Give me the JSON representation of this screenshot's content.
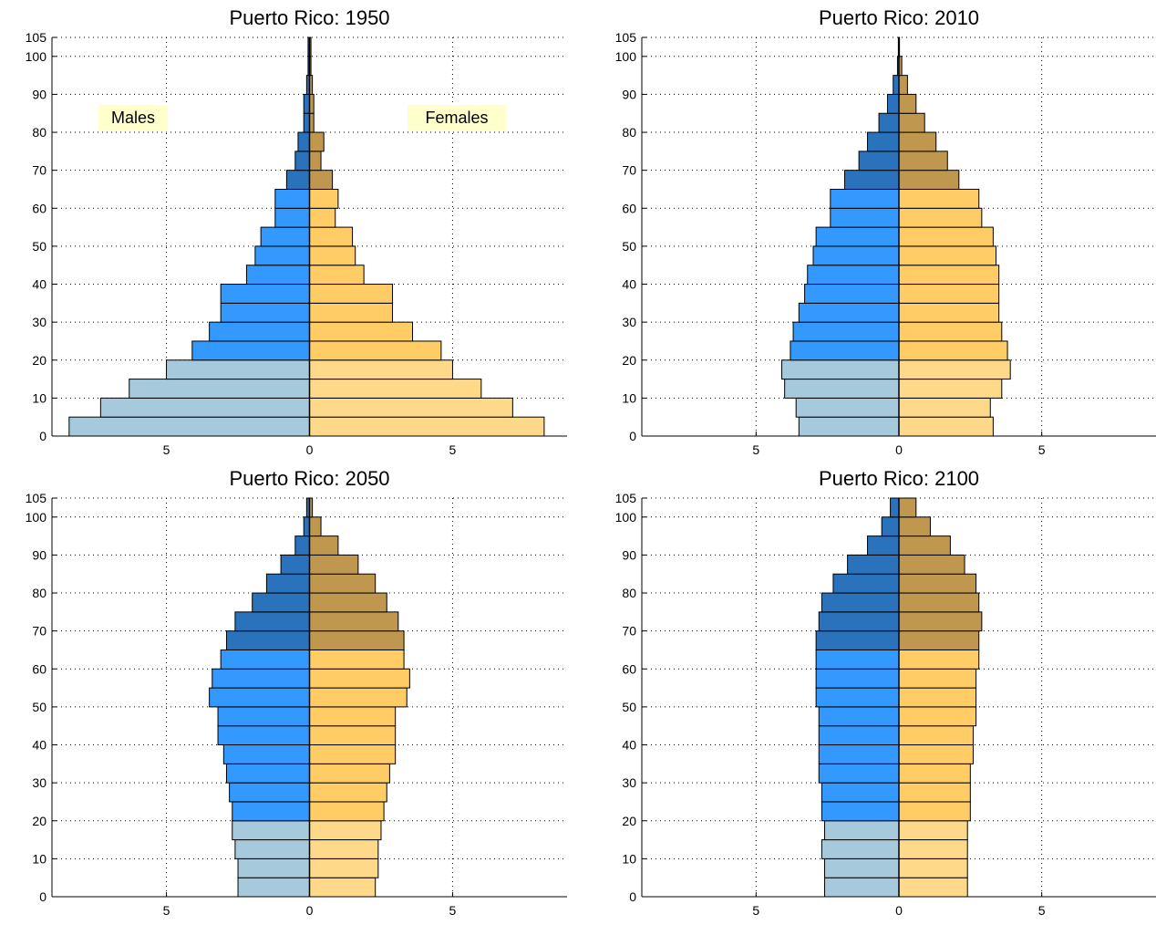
{
  "figure": {
    "panels": [
      {
        "title": "Puerto Rico: 1950"
      },
      {
        "title": "Puerto Rico: 2010"
      },
      {
        "title": "Puerto Rico: 2050"
      },
      {
        "title": "Puerto Rico: 2100"
      }
    ],
    "legend": {
      "males_label": "Males",
      "females_label": "Females",
      "label_background": "#ffffcc"
    }
  },
  "colors": {
    "male_young": "#a6c9dc",
    "male_working": "#3399ff",
    "male_old": "#2a72bb",
    "female_young": "#ffd98a",
    "female_working": "#ffcc66",
    "female_old": "#c0974e",
    "edge": "#000000",
    "grid": "#000000"
  },
  "chart_data": [
    {
      "type": "bar",
      "orientation": "horizontal-butterfly",
      "title": "Puerto Rico: 1950",
      "age_groups": [
        0,
        5,
        10,
        15,
        20,
        25,
        30,
        35,
        40,
        45,
        50,
        55,
        60,
        65,
        70,
        75,
        80,
        85,
        90,
        95,
        100
      ],
      "y_ticks": [
        0,
        10,
        20,
        30,
        40,
        50,
        60,
        70,
        80,
        90,
        100,
        105
      ],
      "x_ticks": [
        5,
        0,
        5
      ],
      "xlim": [
        -9,
        9
      ],
      "ylim": [
        0,
        105
      ],
      "grid": true,
      "series": [
        {
          "name": "Males",
          "values": [
            8.4,
            7.3,
            6.3,
            5.0,
            4.1,
            3.5,
            3.1,
            3.1,
            2.2,
            1.9,
            1.7,
            1.2,
            1.2,
            0.8,
            0.5,
            0.4,
            0.2,
            0.2,
            0.1,
            0.05,
            0.05
          ]
        },
        {
          "name": "Females",
          "values": [
            8.2,
            7.1,
            6.0,
            5.0,
            4.6,
            3.6,
            2.9,
            2.9,
            1.9,
            1.6,
            1.5,
            0.9,
            1.0,
            0.8,
            0.4,
            0.5,
            0.15,
            0.15,
            0.1,
            0.05,
            0.05
          ]
        }
      ]
    },
    {
      "type": "bar",
      "orientation": "horizontal-butterfly",
      "title": "Puerto Rico: 2010",
      "age_groups": [
        0,
        5,
        10,
        15,
        20,
        25,
        30,
        35,
        40,
        45,
        50,
        55,
        60,
        65,
        70,
        75,
        80,
        85,
        90,
        95,
        100
      ],
      "y_ticks": [
        0,
        10,
        20,
        30,
        40,
        50,
        60,
        70,
        80,
        90,
        100,
        105
      ],
      "x_ticks": [
        5,
        0,
        5
      ],
      "xlim": [
        -9,
        9
      ],
      "ylim": [
        0,
        105
      ],
      "grid": true,
      "series": [
        {
          "name": "Males",
          "values": [
            3.5,
            3.6,
            4.0,
            4.1,
            3.8,
            3.7,
            3.5,
            3.3,
            3.2,
            3.0,
            2.9,
            2.4,
            2.4,
            1.9,
            1.4,
            1.1,
            0.7,
            0.4,
            0.2,
            0.05,
            0.02
          ]
        },
        {
          "name": "Females",
          "values": [
            3.3,
            3.2,
            3.6,
            3.9,
            3.8,
            3.6,
            3.5,
            3.5,
            3.5,
            3.4,
            3.3,
            2.9,
            2.8,
            2.1,
            1.7,
            1.3,
            0.9,
            0.6,
            0.3,
            0.1,
            0.02
          ]
        }
      ]
    },
    {
      "type": "bar",
      "orientation": "horizontal-butterfly",
      "title": "Puerto Rico: 2050",
      "age_groups": [
        0,
        5,
        10,
        15,
        20,
        25,
        30,
        35,
        40,
        45,
        50,
        55,
        60,
        65,
        70,
        75,
        80,
        85,
        90,
        95,
        100
      ],
      "y_ticks": [
        0,
        10,
        20,
        30,
        40,
        50,
        60,
        70,
        80,
        90,
        100,
        105
      ],
      "x_ticks": [
        5,
        0,
        5
      ],
      "xlim": [
        -9,
        9
      ],
      "ylim": [
        0,
        105
      ],
      "grid": true,
      "series": [
        {
          "name": "Males",
          "values": [
            2.5,
            2.5,
            2.6,
            2.7,
            2.7,
            2.8,
            2.9,
            3.0,
            3.2,
            3.2,
            3.5,
            3.4,
            3.1,
            2.9,
            2.6,
            2.0,
            1.5,
            1.0,
            0.5,
            0.2,
            0.1
          ]
        },
        {
          "name": "Females",
          "values": [
            2.3,
            2.4,
            2.4,
            2.5,
            2.6,
            2.7,
            2.8,
            3.0,
            3.0,
            3.0,
            3.4,
            3.5,
            3.3,
            3.3,
            3.1,
            2.7,
            2.3,
            1.7,
            1.0,
            0.4,
            0.1
          ]
        }
      ]
    },
    {
      "type": "bar",
      "orientation": "horizontal-butterfly",
      "title": "Puerto Rico: 2100",
      "age_groups": [
        0,
        5,
        10,
        15,
        20,
        25,
        30,
        35,
        40,
        45,
        50,
        55,
        60,
        65,
        70,
        75,
        80,
        85,
        90,
        95,
        100
      ],
      "y_ticks": [
        0,
        10,
        20,
        30,
        40,
        50,
        60,
        70,
        80,
        90,
        100,
        105
      ],
      "x_ticks": [
        5,
        0,
        5
      ],
      "xlim": [
        -9,
        9
      ],
      "ylim": [
        0,
        105
      ],
      "grid": true,
      "series": [
        {
          "name": "Males",
          "values": [
            2.6,
            2.6,
            2.7,
            2.6,
            2.7,
            2.7,
            2.8,
            2.8,
            2.8,
            2.8,
            2.9,
            2.9,
            2.9,
            2.9,
            2.8,
            2.7,
            2.3,
            1.8,
            1.1,
            0.6,
            0.3
          ]
        },
        {
          "name": "Females",
          "values": [
            2.4,
            2.4,
            2.4,
            2.4,
            2.5,
            2.5,
            2.5,
            2.6,
            2.6,
            2.7,
            2.7,
            2.7,
            2.8,
            2.8,
            2.9,
            2.8,
            2.7,
            2.3,
            1.8,
            1.1,
            0.6
          ]
        }
      ]
    }
  ]
}
